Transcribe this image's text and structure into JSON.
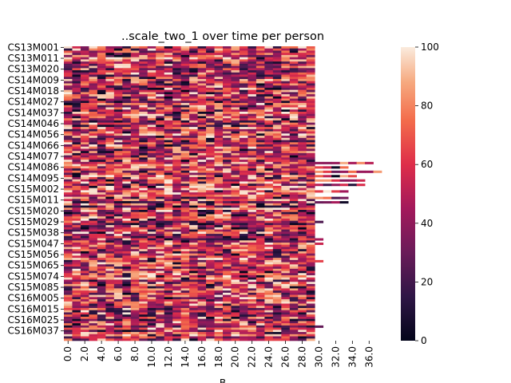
{
  "chart_data": {
    "type": "heatmap",
    "title": "..scale_two_1 over time per person",
    "xlabel": "B",
    "ylabel": "",
    "x_tick_labels": [
      "0.0",
      "2.0",
      "4.0",
      "6.0",
      "8.0",
      "10.0",
      "12.0",
      "14.0",
      "16.0",
      "18.0",
      "20.0",
      "22.0",
      "24.0",
      "26.0",
      "28.0",
      "30.0",
      "32.0",
      "34.0",
      "36.0"
    ],
    "x_tick_step": 2,
    "x_range": [
      0,
      38
    ],
    "y_tick_labels": [
      "CS13M001",
      "CS13M011",
      "CS13M020",
      "CS14M009",
      "CS14M018",
      "CS14M027",
      "CS14M037",
      "CS14M046",
      "CS14M056",
      "CS14M066",
      "CS14M077",
      "CS14M086",
      "CS14M095",
      "CS15M002",
      "CS15M011",
      "CS15M020",
      "CS15M029",
      "CS15M038",
      "CS15M047",
      "CS15M056",
      "CS15M065",
      "CS15M074",
      "CS15M085",
      "CS16M005",
      "CS16M015",
      "CS16M025",
      "CS16M037"
    ],
    "row_count": 135,
    "typical_row_length": 30,
    "colorbar": {
      "min": 0,
      "max": 100,
      "ticks": [
        "0",
        "20",
        "40",
        "60",
        "80",
        "100"
      ],
      "colormap": "rocket"
    },
    "long_rows": [
      {
        "row": 53,
        "length": 37
      },
      {
        "row": 55,
        "length": 34
      },
      {
        "row": 57,
        "length": 38
      },
      {
        "row": 59,
        "length": 35
      },
      {
        "row": 61,
        "length": 36
      },
      {
        "row": 63,
        "length": 36
      },
      {
        "row": 66,
        "length": 34
      },
      {
        "row": 69,
        "length": 34
      },
      {
        "row": 71,
        "length": 34
      },
      {
        "row": 80,
        "length": 31
      },
      {
        "row": 88,
        "length": 31
      },
      {
        "row": 90,
        "length": 31
      },
      {
        "row": 98,
        "length": 31
      },
      {
        "row": 128,
        "length": 31
      }
    ]
  }
}
